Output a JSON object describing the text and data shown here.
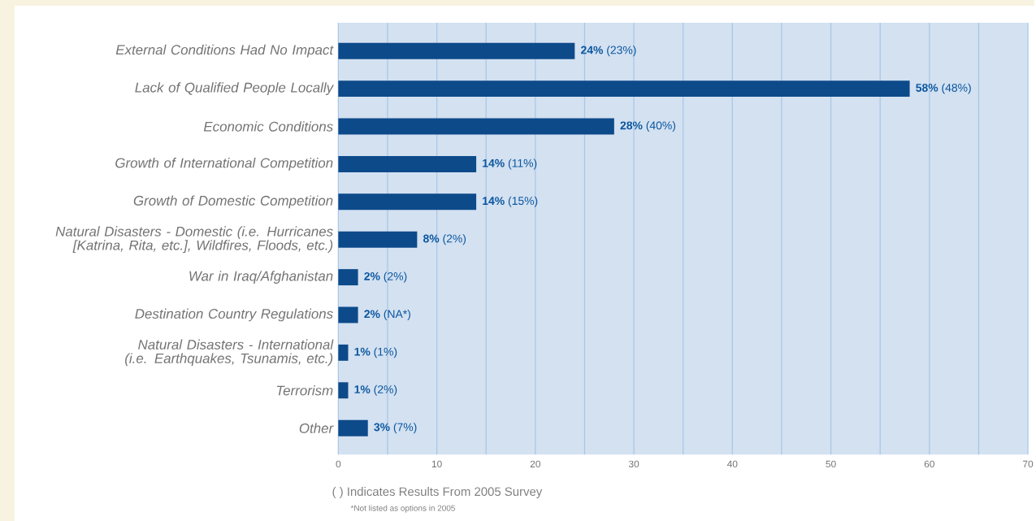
{
  "chart_data": {
    "type": "bar",
    "orientation": "horizontal",
    "categories": [
      "External Conditions Had No Impact",
      "Lack of Qualified People Locally",
      "Economic Conditions",
      "Growth of International Competition",
      "Growth of Domestic Competition",
      "Natural Disasters - Domestic (i.e. Hurricanes [Katrina, Rita, etc.], Wildfires, Floods, etc.)",
      "War in Iraq/Afghanistan",
      "Destination Country Regulations",
      "Natural Disasters - International (i.e. Earthquakes, Tsunamis, etc.)",
      "Terrorism",
      "Other"
    ],
    "values": [
      24,
      58,
      28,
      14,
      14,
      8,
      2,
      2,
      1,
      1,
      3
    ],
    "value_labels": [
      "**24%** (23%)",
      "**58%** (48%)",
      "**28%** (40%)",
      "**14%** (11%)",
      "**14%** (15%)",
      "**8%** (2%)",
      "**2%** (2%)",
      "**2%** (NA*)",
      "**1%** (1%)",
      "**1%** (2%)",
      "**3%** (7%)"
    ],
    "color": "#0d4a8a",
    "xlim": [
      0,
      70
    ],
    "xticks": [
      0,
      {
        "value": 5,
        "label": null
      },
      10,
      {
        "value": 15,
        "label": null
      },
      20,
      {
        "value": 25,
        "label": null
      },
      30,
      {
        "value": 35,
        "label": null
      },
      40,
      {
        "value": 45,
        "label": null
      },
      50,
      {
        "value": 55,
        "label": null
      },
      60,
      {
        "value": 65,
        "label": null
      },
      70
    ],
    "grid": "x",
    "annotations": [
      "( ) Indicates Results From 2005 Survey",
      "*Not listed as options in 2005"
    ]
  }
}
